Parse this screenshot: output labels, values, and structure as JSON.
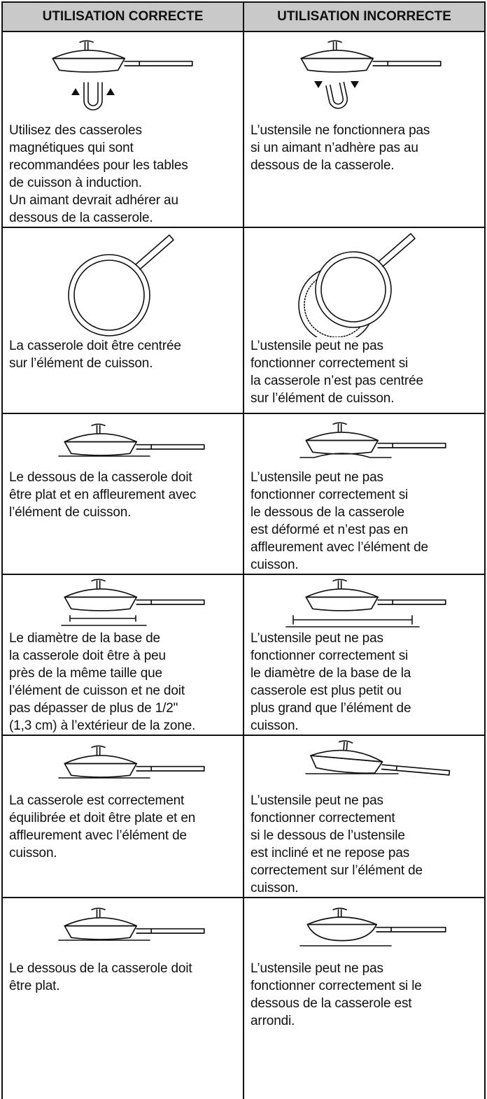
{
  "table": {
    "header": [
      "UTILISATION CORRECTE",
      "UTILISATION INCORRECTE"
    ],
    "rows": [
      [
        {
          "lines": [
            "Utilisez des casseroles",
            "magnétiques qui sont",
            "recommandées pour les tables",
            "de cuisson à induction.",
            "Un aimant devrait adhérer au",
            "dessous de la casserole."
          ]
        },
        {
          "lines": [
            "L’ustensile ne fonctionnera pas",
            "si un aimant n’adhère pas au",
            "dessous de la casserole."
          ]
        }
      ],
      [
        {
          "lines": [
            "La casserole doit être centrée",
            "sur l’élément de cuisson."
          ]
        },
        {
          "lines": [
            "L’ustensile peut ne pas",
            "fonctionner correctement si",
            "la casserole n’est pas centrée",
            "sur l’élément de cuisson."
          ]
        }
      ],
      [
        {
          "lines": [
            "Le dessous de la casserole doit",
            "être plat et en affleurement avec",
            "l’élément de cuisson."
          ]
        },
        {
          "lines": [
            "L’ustensile peut ne pas",
            "fonctionner correctement si",
            "le dessous de la casserole",
            "est déformé et n’est pas en",
            "affleurement avec l’élément de",
            "cuisson."
          ]
        }
      ],
      [
        {
          "lines": [
            "Le diamètre de la base de",
            "la casserole doit être à peu",
            "près de la même taille que",
            "l’élément de cuisson et ne doit",
            "pas dépasser de plus de 1/2\"",
            "(1,3 cm) à l’extérieur de la zone."
          ]
        },
        {
          "lines": [
            "L’ustensile peut ne pas",
            "fonctionner correctement si",
            "le diamètre de la base de la",
            "casserole est plus petit ou",
            "plus grand que l’élément de",
            "cuisson."
          ]
        }
      ],
      [
        {
          "lines": [
            "La casserole est correctement",
            "équilibrée et doit être plate et en",
            "affleurement avec l’élément de",
            "cuisson."
          ]
        },
        {
          "lines": [
            "L’ustensile peut ne pas",
            "fonctionner correctement",
            "si le dessous de l’ustensile",
            "est incliné et ne repose pas",
            "correctement sur l’élément de",
            "cuisson."
          ]
        }
      ],
      [
        {
          "lines": [
            "Le dessous de la casserole doit",
            "être plat."
          ]
        },
        {
          "lines": [
            "L’ustensile peut ne pas",
            "fonctionner correctement si le",
            "dessous de la casserole est",
            "arrondi."
          ]
        }
      ]
    ]
  }
}
